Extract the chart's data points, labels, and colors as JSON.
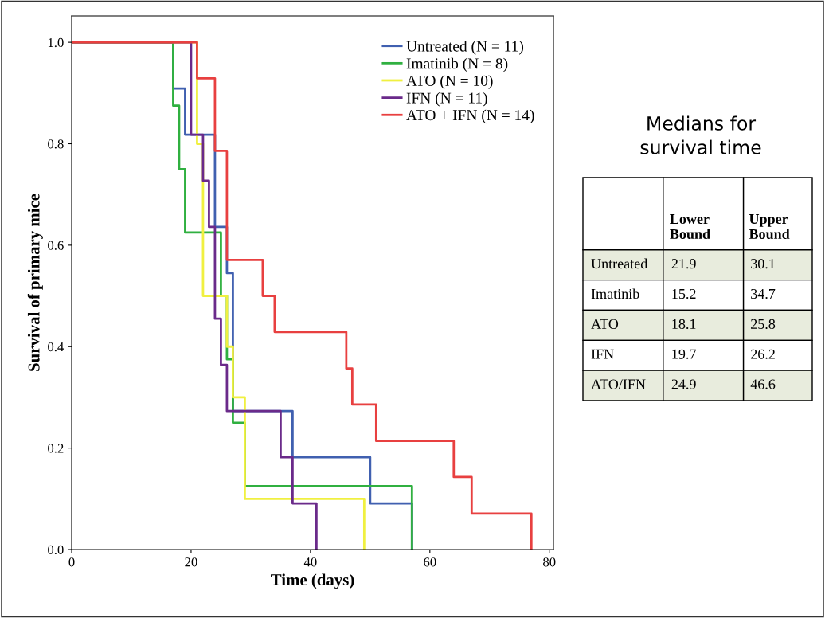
{
  "chart_data": [
    {
      "type": "step",
      "xlabel": "Time (days)",
      "ylabel": "Survival of primary mice",
      "xlim": [
        0,
        80.7
      ],
      "xticks": [
        0,
        20,
        40,
        60,
        80
      ],
      "ylim": [
        0,
        1.052
      ],
      "yticks": [
        {
          "value": 0,
          "label": "0.0"
        },
        {
          "value": 0.2,
          "label": "0.2"
        },
        {
          "value": 0.4,
          "label": "0.4"
        },
        {
          "value": 0.6,
          "label": "0.6"
        },
        {
          "value": 0.8,
          "label": "0.8"
        },
        {
          "value": 1,
          "label": "1.0"
        }
      ],
      "legend": "top right",
      "grid": false,
      "series": [
        {
          "name": "Untreated (N = 11)",
          "color": "#4060b0",
          "x": [
            0,
            17,
            19,
            24,
            26,
            27,
            37,
            50,
            57
          ],
          "values": [
            1,
            0.909,
            0.818,
            0.636,
            0.545,
            0.273,
            0.182,
            0.091,
            0
          ]
        },
        {
          "name": "Imatinib (N = 8)",
          "color": "#30b040",
          "x": [
            0,
            17,
            18,
            19,
            25,
            26,
            27,
            29,
            57
          ],
          "values": [
            1,
            0.875,
            0.75,
            0.625,
            0.5,
            0.375,
            0.25,
            0.125,
            0
          ]
        },
        {
          "name": "ATO (N = 10)",
          "color": "#f0f040",
          "x": [
            0,
            21,
            22,
            26,
            27,
            29,
            49
          ],
          "values": [
            1,
            0.8,
            0.5,
            0.4,
            0.3,
            0.1,
            0
          ]
        },
        {
          "name": "IFN (N = 11)",
          "color": "#6a2a8a",
          "x": [
            0,
            20,
            22,
            23,
            24,
            25,
            26,
            35,
            37,
            41
          ],
          "values": [
            1,
            0.818,
            0.727,
            0.636,
            0.455,
            0.364,
            0.273,
            0.182,
            0.091,
            0
          ]
        },
        {
          "name": "ATO + IFN (N = 14)",
          "color": "#e84040",
          "x": [
            0,
            21,
            24,
            26,
            32,
            34,
            46,
            47,
            51,
            64,
            67,
            77
          ],
          "values": [
            1,
            0.929,
            0.786,
            0.571,
            0.5,
            0.429,
            0.357,
            0.286,
            0.214,
            0.143,
            0.071,
            0
          ]
        }
      ]
    },
    {
      "type": "other",
      "title": "Medians for survival time",
      "categories": [
        "Untreated",
        "Imatinib",
        "ATO",
        "IFN",
        "ATO/IFN"
      ],
      "colors": [
        "#e8ecdd",
        "#ffffff",
        "#e8ecdd",
        "#ffffff",
        "#e8ecdd"
      ],
      "series": [
        {
          "name": "Lower Bound",
          "colors": [
            "#e8ecdd",
            "#ffffff",
            "#e8ecdd",
            "#ffffff",
            "#e8ecdd"
          ],
          "values": [
            21.9,
            15.2,
            18.1,
            19.7,
            24.9
          ]
        },
        {
          "name": "Upper Bound",
          "colors": [
            "#e8ecdd",
            "#ffffff",
            "#e8ecdd",
            "#ffffff",
            "#e8ecdd"
          ],
          "values": [
            30.1,
            34.7,
            25.8,
            26.2,
            46.6
          ]
        }
      ],
      "data_labels": true
    }
  ]
}
